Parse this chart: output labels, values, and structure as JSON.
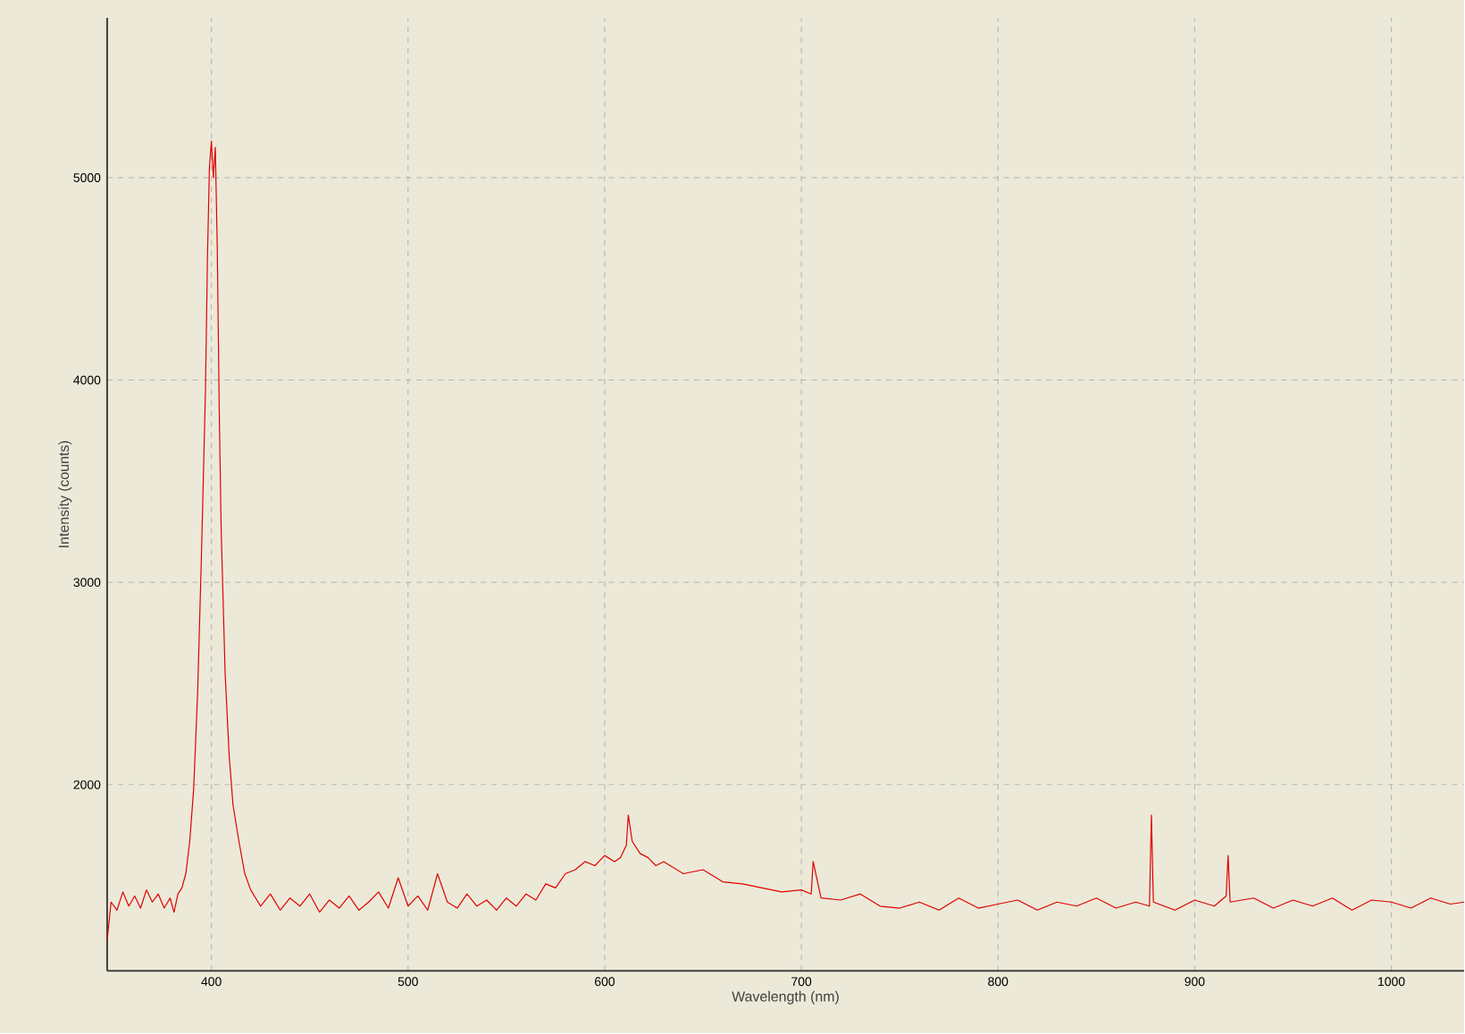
{
  "chart_data": {
    "type": "line",
    "xlabel": "Wavelength (nm)",
    "ylabel": "Intensity (counts)",
    "xlim": [
      347,
      1037
    ],
    "ylim": [
      1080,
      5790
    ],
    "xticks": [
      400,
      500,
      600,
      700,
      800,
      900,
      1000
    ],
    "yticks": [
      2000,
      3000,
      4000,
      5000
    ],
    "grid": true,
    "series": [
      {
        "color": "#e00000",
        "x": [
          347,
          349,
          352,
          355,
          358,
          361,
          364,
          367,
          370,
          373,
          376,
          379,
          381,
          383,
          385,
          387,
          389,
          391,
          393,
          395,
          397,
          398,
          399,
          400,
          401,
          402,
          403,
          404,
          405,
          407,
          409,
          411,
          414,
          417,
          420,
          425,
          430,
          435,
          440,
          445,
          450,
          455,
          460,
          465,
          470,
          475,
          480,
          485,
          490,
          495,
          500,
          505,
          510,
          515,
          520,
          525,
          530,
          535,
          540,
          545,
          550,
          555,
          560,
          565,
          570,
          575,
          580,
          585,
          590,
          595,
          600,
          605,
          608,
          611,
          612,
          614,
          618,
          622,
          626,
          630,
          640,
          650,
          660,
          670,
          680,
          690,
          700,
          705,
          706,
          710,
          720,
          730,
          740,
          750,
          760,
          770,
          780,
          790,
          800,
          810,
          820,
          830,
          840,
          850,
          860,
          870,
          877,
          878,
          879,
          890,
          900,
          910,
          916,
          917,
          918,
          930,
          940,
          950,
          960,
          970,
          980,
          990,
          1000,
          1010,
          1020,
          1030,
          1037
        ],
        "values": [
          1230,
          1420,
          1380,
          1470,
          1400,
          1450,
          1390,
          1480,
          1420,
          1460,
          1390,
          1440,
          1370,
          1460,
          1490,
          1560,
          1720,
          1980,
          2450,
          3150,
          3950,
          4600,
          5050,
          5180,
          5000,
          5150,
          4650,
          3850,
          3250,
          2550,
          2150,
          1900,
          1720,
          1560,
          1480,
          1400,
          1460,
          1380,
          1440,
          1400,
          1460,
          1370,
          1430,
          1390,
          1450,
          1380,
          1420,
          1470,
          1390,
          1540,
          1400,
          1450,
          1380,
          1560,
          1420,
          1390,
          1460,
          1400,
          1430,
          1380,
          1440,
          1400,
          1460,
          1430,
          1510,
          1490,
          1560,
          1580,
          1620,
          1600,
          1650,
          1620,
          1640,
          1700,
          1850,
          1720,
          1660,
          1640,
          1600,
          1620,
          1560,
          1580,
          1520,
          1510,
          1490,
          1470,
          1480,
          1460,
          1620,
          1440,
          1430,
          1460,
          1400,
          1390,
          1420,
          1380,
          1440,
          1390,
          1410,
          1430,
          1380,
          1420,
          1400,
          1440,
          1390,
          1420,
          1400,
          1850,
          1420,
          1380,
          1430,
          1400,
          1450,
          1650,
          1420,
          1440,
          1390,
          1430,
          1400,
          1440,
          1380,
          1430,
          1420,
          1390,
          1440,
          1410,
          1420
        ]
      }
    ]
  }
}
